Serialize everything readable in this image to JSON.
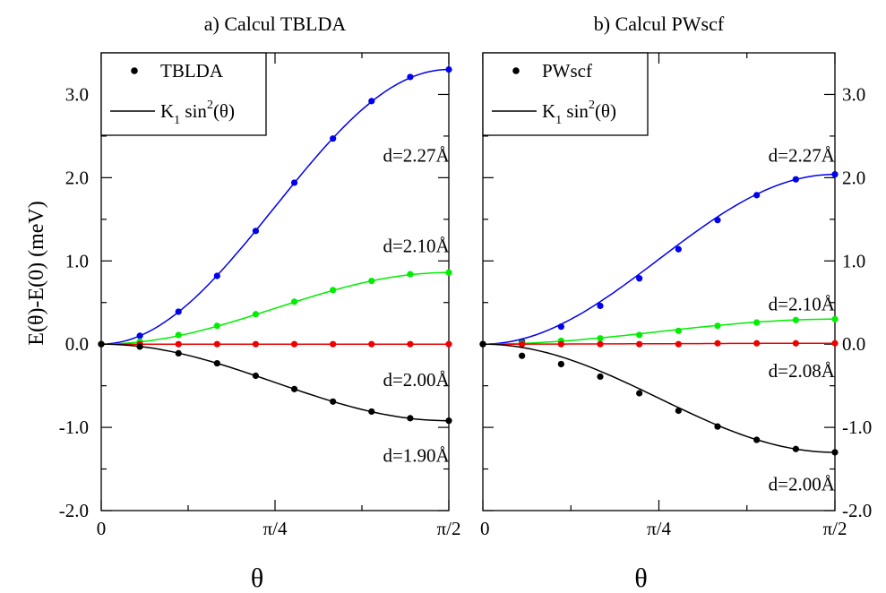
{
  "y_axis_label": "E(θ)-E(0)  (meV)",
  "x_axis_symbol": "θ",
  "chart_data": [
    {
      "type": "line",
      "title": "a) Calcul TBLDA",
      "xlabel": "θ",
      "ylabel": "E(θ)-E(0)  (meV)",
      "xlim": [
        0,
        1.5708
      ],
      "ylim": [
        -2.0,
        3.5
      ],
      "x_ticks": [
        {
          "value": 0,
          "label": "0"
        },
        {
          "value": 0.7854,
          "label": "π/4"
        },
        {
          "value": 1.5708,
          "label": "π/2"
        }
      ],
      "y_ticks": [
        {
          "value": -2.0,
          "label": "-2.0"
        },
        {
          "value": -1.0,
          "label": "-1.0"
        },
        {
          "value": 0.0,
          "label": "0.0"
        },
        {
          "value": 1.0,
          "label": "1.0"
        },
        {
          "value": 2.0,
          "label": "2.0"
        },
        {
          "value": 3.0,
          "label": "3.0"
        }
      ],
      "y_tick_side": "left",
      "legend": {
        "placement": "top-left",
        "points_label": "TBLDA",
        "line_label_main": "K",
        "line_label_sub": "1",
        "line_label_rest": " sin",
        "line_label_sup": "2",
        "line_label_end": "(θ)"
      },
      "fit": "K1 sin^2(θ)",
      "series": [
        {
          "name": "d=2.27Å",
          "color": "#0000ee",
          "label_at": [
            1.31,
            2.27
          ],
          "x": [
            0,
            0.1745,
            0.3491,
            0.5236,
            0.6981,
            0.8727,
            1.0472,
            1.2217,
            1.3963,
            1.5708
          ],
          "values": [
            0.0,
            0.1,
            0.39,
            0.82,
            1.36,
            1.94,
            2.47,
            2.92,
            3.21,
            3.3
          ]
        },
        {
          "name": "d=2.10Å",
          "color": "#00ee00",
          "label_at": [
            1.31,
            1.18
          ],
          "x": [
            0,
            0.1745,
            0.3491,
            0.5236,
            0.6981,
            0.8727,
            1.0472,
            1.2217,
            1.3963,
            1.5708
          ],
          "values": [
            0.0,
            0.03,
            0.11,
            0.22,
            0.36,
            0.51,
            0.65,
            0.76,
            0.84,
            0.86
          ]
        },
        {
          "name": "d=2.00Å",
          "color": "#ee0000",
          "label_at": [
            1.31,
            -0.43
          ],
          "x": [
            0,
            0.1745,
            0.3491,
            0.5236,
            0.6981,
            0.8727,
            1.0472,
            1.2217,
            1.3963,
            1.5708
          ],
          "values": [
            0.0,
            0.0,
            0.0,
            0.0,
            0.0,
            0.0,
            0.0,
            0.0,
            0.0,
            0.0
          ]
        },
        {
          "name": "d=1.90Å",
          "color": "#000000",
          "label_at": [
            1.31,
            -1.34
          ],
          "x": [
            0,
            0.1745,
            0.3491,
            0.5236,
            0.6981,
            0.8727,
            1.0472,
            1.2217,
            1.3963,
            1.5708
          ],
          "values": [
            0.0,
            -0.03,
            -0.11,
            -0.23,
            -0.38,
            -0.54,
            -0.69,
            -0.81,
            -0.89,
            -0.92
          ]
        }
      ]
    },
    {
      "type": "line",
      "title": "b) Calcul PWscf",
      "xlabel": "θ",
      "xlim": [
        0,
        1.5708
      ],
      "ylim": [
        -2.0,
        3.5
      ],
      "x_ticks": [
        {
          "value": 0,
          "label": "0"
        },
        {
          "value": 0.7854,
          "label": "π/4"
        },
        {
          "value": 1.5708,
          "label": "π/2"
        }
      ],
      "y_ticks": [
        {
          "value": -2.0,
          "label": "-2.0"
        },
        {
          "value": -1.0,
          "label": "-1.0"
        },
        {
          "value": 0.0,
          "label": "0.0"
        },
        {
          "value": 1.0,
          "label": "1.0"
        },
        {
          "value": 2.0,
          "label": "2.0"
        },
        {
          "value": 3.0,
          "label": "3.0"
        }
      ],
      "y_tick_side": "right",
      "legend": {
        "placement": "top-left",
        "points_label": "PWscf",
        "line_label_main": "K",
        "line_label_sub": "1",
        "line_label_rest": " sin",
        "line_label_sup": "2",
        "line_label_end": "(θ)"
      },
      "fit": "K1 sin^2(θ)",
      "series": [
        {
          "name": "d=2.27Å",
          "color": "#0000ee",
          "label_at": [
            1.31,
            2.27
          ],
          "x": [
            0,
            0.1745,
            0.3491,
            0.5236,
            0.6981,
            0.8727,
            1.0472,
            1.2217,
            1.3963,
            1.5708
          ],
          "values": [
            0.0,
            0.03,
            0.21,
            0.46,
            0.79,
            1.14,
            1.49,
            1.79,
            1.98,
            2.04
          ]
        },
        {
          "name": "d=2.10Å",
          "color": "#00ee00",
          "label_at": [
            1.31,
            0.48
          ],
          "x": [
            0,
            0.1745,
            0.3491,
            0.5236,
            0.6981,
            0.8727,
            1.0472,
            1.2217,
            1.3963,
            1.5708
          ],
          "values": [
            0.0,
            0.01,
            0.04,
            0.07,
            0.11,
            0.16,
            0.22,
            0.26,
            0.29,
            0.3
          ]
        },
        {
          "name": "d=2.08Å",
          "color": "#ee0000",
          "label_at": [
            1.31,
            -0.32
          ],
          "x": [
            0,
            0.1745,
            0.3491,
            0.5236,
            0.6981,
            0.8727,
            1.0472,
            1.2217,
            1.3963,
            1.5708
          ],
          "values": [
            0.0,
            0.0,
            0.0,
            0.0,
            0.0,
            0.0,
            0.01,
            0.01,
            0.01,
            0.01
          ]
        },
        {
          "name": "d=2.00Å",
          "color": "#000000",
          "label_at": [
            1.31,
            -1.68
          ],
          "x": [
            0,
            0.1745,
            0.3491,
            0.5236,
            0.6981,
            0.8727,
            1.0472,
            1.2217,
            1.3963,
            1.5708
          ],
          "values": [
            0.0,
            -0.14,
            -0.24,
            -0.39,
            -0.59,
            -0.8,
            -0.99,
            -1.15,
            -1.26,
            -1.3
          ]
        }
      ]
    }
  ]
}
